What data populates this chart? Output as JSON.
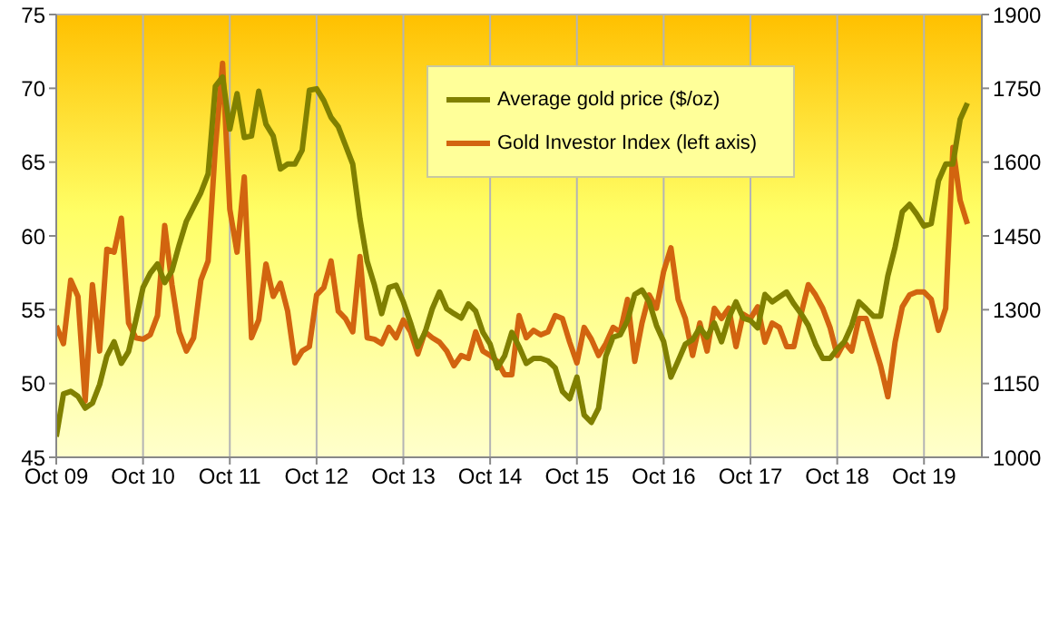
{
  "chart_data": {
    "type": "line",
    "x": [
      "2009-10",
      "2009-11",
      "2009-12",
      "2010-01",
      "2010-02",
      "2010-03",
      "2010-04",
      "2010-05",
      "2010-06",
      "2010-07",
      "2010-08",
      "2010-09",
      "2010-10",
      "2010-11",
      "2010-12",
      "2011-01",
      "2011-02",
      "2011-03",
      "2011-04",
      "2011-05",
      "2011-06",
      "2011-07",
      "2011-08",
      "2011-09",
      "2011-10",
      "2011-11",
      "2011-12",
      "2012-01",
      "2012-02",
      "2012-03",
      "2012-04",
      "2012-05",
      "2012-06",
      "2012-07",
      "2012-08",
      "2012-09",
      "2012-10",
      "2012-11",
      "2012-12",
      "2013-01",
      "2013-02",
      "2013-03",
      "2013-04",
      "2013-05",
      "2013-06",
      "2013-07",
      "2013-08",
      "2013-09",
      "2013-10",
      "2013-11",
      "2013-12",
      "2014-01",
      "2014-02",
      "2014-03",
      "2014-04",
      "2014-05",
      "2014-06",
      "2014-07",
      "2014-08",
      "2014-09",
      "2014-10",
      "2014-11",
      "2014-12",
      "2015-01",
      "2015-02",
      "2015-03",
      "2015-04",
      "2015-05",
      "2015-06",
      "2015-07",
      "2015-08",
      "2015-09",
      "2015-10",
      "2015-11",
      "2015-12",
      "2016-01",
      "2016-02",
      "2016-03",
      "2016-04",
      "2016-05",
      "2016-06",
      "2016-07",
      "2016-08",
      "2016-09",
      "2016-10",
      "2016-11",
      "2016-12",
      "2017-01",
      "2017-02",
      "2017-03",
      "2017-04",
      "2017-05",
      "2017-06",
      "2017-07",
      "2017-08",
      "2017-09",
      "2017-10",
      "2017-11",
      "2017-12",
      "2018-01",
      "2018-02",
      "2018-03",
      "2018-04",
      "2018-05",
      "2018-06",
      "2018-07",
      "2018-08",
      "2018-09",
      "2018-10",
      "2018-11",
      "2018-12",
      "2019-01",
      "2019-02",
      "2019-03",
      "2019-04",
      "2019-05",
      "2019-06",
      "2019-07",
      "2019-08",
      "2019-09",
      "2019-10",
      "2019-11",
      "2019-12",
      "2020-01",
      "2020-02",
      "2020-03",
      "2020-04"
    ],
    "series": [
      {
        "name": "Gold Investor Index (left axis)",
        "color": "#d2640f",
        "values": [
          53.9,
          52.7,
          57.0,
          55.9,
          48.8,
          56.7,
          52.2,
          59.1,
          58.9,
          61.2,
          54.1,
          53.1,
          53.0,
          53.3,
          54.6,
          60.7,
          56.7,
          53.5,
          52.2,
          53.1,
          57.0,
          58.3,
          66.0,
          71.7,
          61.8,
          58.9,
          64.0,
          53.1,
          54.3,
          58.1,
          55.9,
          56.8,
          54.9,
          51.4,
          52.2,
          52.5,
          56.0,
          56.5,
          58.3,
          54.9,
          54.4,
          53.5,
          58.6,
          53.1,
          53.0,
          52.7,
          53.8,
          53.1,
          54.3,
          53.5,
          52.0,
          53.5,
          53.1,
          52.8,
          52.2,
          51.2,
          51.9,
          51.7,
          53.5,
          52.2,
          51.9,
          51.5,
          50.6,
          50.6,
          54.6,
          53.1,
          53.6,
          53.3,
          53.5,
          54.6,
          54.4,
          52.8,
          51.4,
          53.8,
          53.0,
          51.9,
          52.7,
          53.8,
          53.5,
          55.7,
          51.5,
          54.1,
          56.0,
          55.1,
          57.6,
          59.2,
          55.7,
          54.4,
          51.9,
          54.1,
          52.2,
          55.1,
          54.4,
          55.1,
          52.5,
          54.7,
          54.4,
          55.2,
          52.8,
          54.1,
          53.8,
          52.5,
          52.5,
          54.7,
          56.7,
          56.0,
          55.1,
          53.8,
          51.9,
          52.8,
          52.2,
          54.4,
          54.4,
          52.8,
          51.2,
          49.1,
          52.8,
          55.2,
          56.0,
          56.2,
          56.2,
          55.7,
          53.6,
          55.1,
          66.0,
          62.4,
          60.8
        ]
      },
      {
        "name": "Average gold price ($/oz)",
        "color": "#808000",
        "axis": "y2",
        "values": [
          1042,
          1129,
          1134,
          1124,
          1100,
          1110,
          1148,
          1206,
          1235,
          1191,
          1215,
          1278,
          1345,
          1374,
          1393,
          1355,
          1379,
          1432,
          1480,
          1509,
          1538,
          1576,
          1754,
          1773,
          1667,
          1739,
          1650,
          1653,
          1744,
          1677,
          1653,
          1586,
          1596,
          1596,
          1624,
          1746,
          1749,
          1725,
          1691,
          1672,
          1634,
          1596,
          1485,
          1398,
          1350,
          1292,
          1345,
          1350,
          1316,
          1273,
          1225,
          1254,
          1302,
          1336,
          1302,
          1292,
          1283,
          1312,
          1297,
          1254,
          1230,
          1182,
          1206,
          1254,
          1225,
          1191,
          1201,
          1201,
          1196,
          1182,
          1134,
          1119,
          1163,
          1086,
          1071,
          1100,
          1206,
          1244,
          1249,
          1278,
          1331,
          1340,
          1316,
          1268,
          1235,
          1163,
          1196,
          1230,
          1239,
          1263,
          1244,
          1273,
          1235,
          1283,
          1316,
          1283,
          1278,
          1263,
          1331,
          1316,
          1326,
          1336,
          1312,
          1292,
          1268,
          1230,
          1201,
          1201,
          1220,
          1235,
          1268,
          1316,
          1302,
          1287,
          1287,
          1369,
          1427,
          1499,
          1514,
          1494,
          1470,
          1475,
          1562,
          1596,
          1596,
          1687,
          1720
        ]
      }
    ],
    "xlim": [
      "2009-10",
      "2020-06"
    ],
    "xticks": [
      {
        "value": "2009-10",
        "label": "Oct 09"
      },
      {
        "value": "2010-10",
        "label": "Oct 10"
      },
      {
        "value": "2011-10",
        "label": "Oct 11"
      },
      {
        "value": "2012-10",
        "label": "Oct 12"
      },
      {
        "value": "2013-10",
        "label": "Oct 13"
      },
      {
        "value": "2014-10",
        "label": "Oct 14"
      },
      {
        "value": "2015-10",
        "label": "Oct 15"
      },
      {
        "value": "2016-10",
        "label": "Oct 16"
      },
      {
        "value": "2017-10",
        "label": "Oct 17"
      },
      {
        "value": "2018-10",
        "label": "Oct 18"
      },
      {
        "value": "2019-10",
        "label": "Oct 19"
      }
    ],
    "ylim": [
      45,
      75
    ],
    "yticks": [
      45,
      50,
      55,
      60,
      65,
      70,
      75
    ],
    "y2lim": [
      1000,
      1900
    ],
    "y2ticks": [
      1000,
      1150,
      1300,
      1450,
      1600,
      1750,
      1900
    ],
    "grid": true,
    "legend": "top",
    "marker": "none",
    "line_style": "solid"
  }
}
